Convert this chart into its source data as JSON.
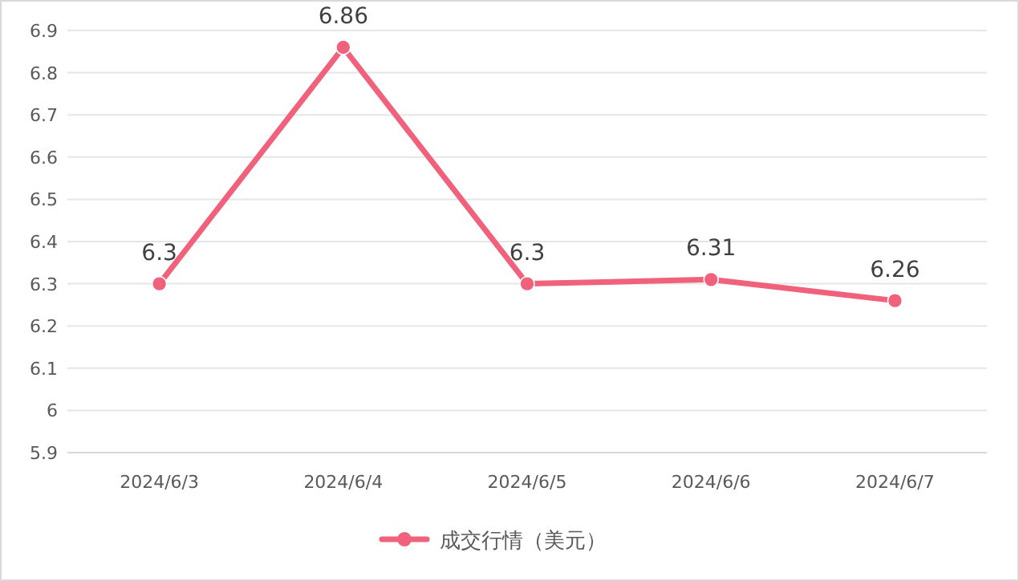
{
  "chart_data": {
    "type": "line",
    "categories": [
      "2024/6/3",
      "2024/6/4",
      "2024/6/5",
      "2024/6/6",
      "2024/6/7"
    ],
    "series": [
      {
        "name": "成交行情（美元）",
        "color": "#f0627c",
        "values": [
          6.3,
          6.86,
          6.3,
          6.31,
          6.26
        ]
      }
    ],
    "ylim": [
      5.9,
      6.9
    ],
    "yticks": [
      5.9,
      6,
      6.1,
      6.2,
      6.3,
      6.4,
      6.5,
      6.6,
      6.7,
      6.8,
      6.9
    ],
    "grid": "y",
    "legend": "bottom",
    "marker": "circle",
    "line_style": "solid",
    "data_labels": true
  }
}
